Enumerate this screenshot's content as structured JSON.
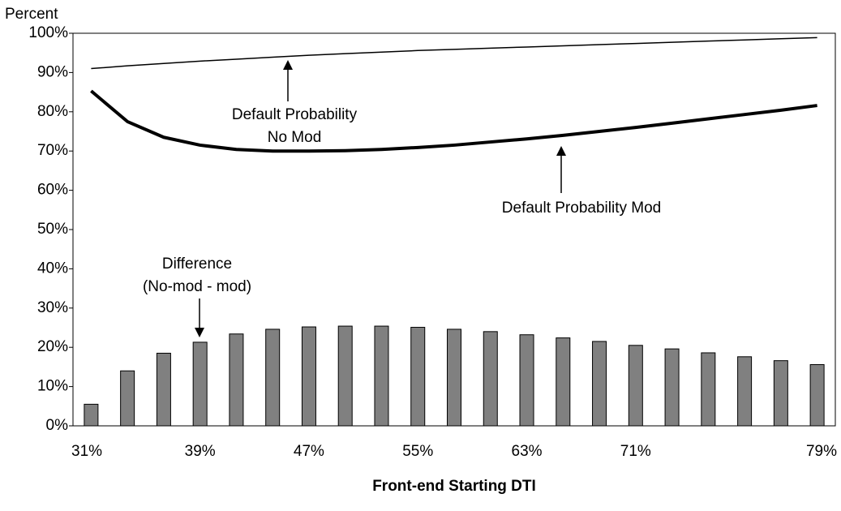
{
  "chart_data": {
    "type": "bar",
    "y_axis_label": "Percent",
    "x_axis_label": "Front-end Starting DTI",
    "categories": [
      "31%",
      null,
      null,
      "39%",
      null,
      null,
      "47%",
      null,
      null,
      "55%",
      null,
      null,
      "63%",
      null,
      null,
      "71%",
      null,
      null,
      null,
      null,
      "79%"
    ],
    "ylim": [
      0,
      100
    ],
    "yticks": [
      {
        "value": 0,
        "label": "0%"
      },
      {
        "value": 10,
        "label": "10%"
      },
      {
        "value": 20,
        "label": "20%"
      },
      {
        "value": 30,
        "label": "30%"
      },
      {
        "value": 40,
        "label": "40%"
      },
      {
        "value": 50,
        "label": "50%"
      },
      {
        "value": 60,
        "label": "60%"
      },
      {
        "value": 70,
        "label": "70%"
      },
      {
        "value": 80,
        "label": "80%"
      },
      {
        "value": 90,
        "label": "90%"
      },
      {
        "value": 100,
        "label": "100%"
      }
    ],
    "series": [
      {
        "type": "bar",
        "color": "#808080",
        "values": [
          5.5,
          14,
          18.5,
          21.3,
          23.4,
          24.6,
          25.2,
          25.4,
          25.4,
          25.1,
          24.6,
          24.0,
          23.2,
          22.4,
          21.5,
          20.5,
          19.6,
          18.6,
          17.6,
          16.6,
          15.6
        ]
      },
      {
        "type": "line",
        "color": "#000000",
        "values": [
          91.0,
          91.7,
          92.3,
          92.9,
          93.4,
          93.9,
          94.4,
          94.8,
          95.2,
          95.6,
          95.9,
          96.2,
          96.5,
          96.8,
          97.1,
          97.4,
          97.7,
          98.0,
          98.3,
          98.6,
          98.9
        ]
      },
      {
        "type": "line",
        "color": "#000000",
        "values": [
          85.3,
          77.5,
          73.5,
          71.5,
          70.4,
          70.0,
          70.0,
          70.1,
          70.4,
          70.9,
          71.5,
          72.3,
          73.1,
          74.0,
          75.0,
          76.0,
          77.1,
          78.2,
          79.3,
          80.4,
          81.6
        ]
      }
    ],
    "annotations": [
      {
        "lines": [
          "Default Probability",
          "No Mod"
        ]
      },
      {
        "lines": [
          "Default Probability Mod"
        ]
      },
      {
        "lines": [
          "Difference",
          "(No-mod - mod)"
        ]
      }
    ]
  }
}
